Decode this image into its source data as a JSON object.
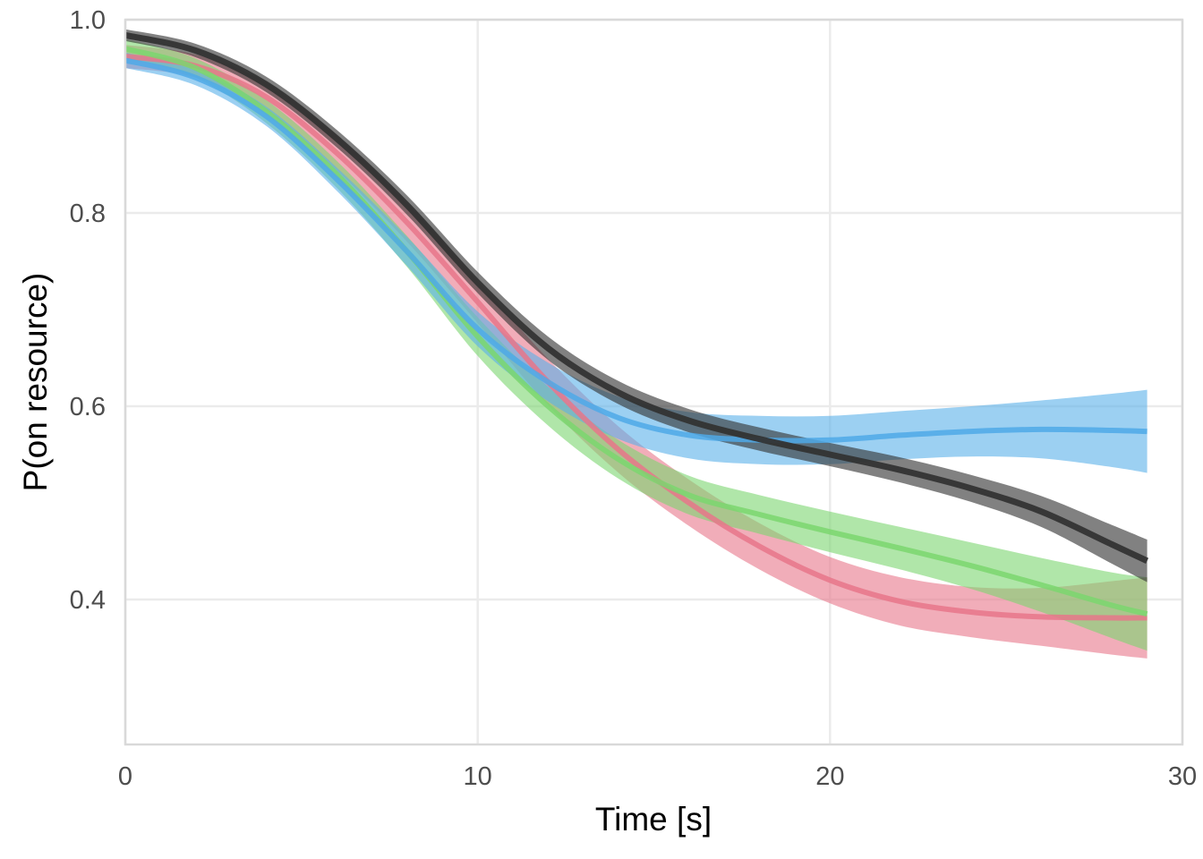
{
  "chart_data": {
    "type": "line",
    "title": "",
    "xlabel": "Time [s]",
    "ylabel": "P(on resource)",
    "xlim": [
      0,
      30
    ],
    "ylim": [
      0.25,
      1.0
    ],
    "x_ticks": [
      0,
      10,
      20,
      30
    ],
    "x_tick_labels": [
      "0",
      "10",
      "20",
      "30"
    ],
    "y_ticks": [
      0.4,
      0.6,
      0.8,
      1.0
    ],
    "y_tick_labels": [
      "0.4",
      "0.6",
      "0.8",
      "1.0"
    ],
    "grid": true,
    "legend": "none",
    "x": [
      0,
      2,
      4,
      6,
      8,
      10,
      12,
      14,
      16,
      18,
      20,
      22,
      24,
      26,
      28,
      29
    ],
    "series": [
      {
        "name": "red",
        "color": "#e8768a",
        "band_color": "#e8768a",
        "values": [
          0.962,
          0.952,
          0.92,
          0.862,
          0.79,
          0.708,
          0.625,
          0.555,
          0.5,
          0.455,
          0.42,
          0.398,
          0.387,
          0.382,
          0.381,
          0.381
        ],
        "ci_halfwidth": [
          0.012,
          0.012,
          0.015,
          0.018,
          0.02,
          0.022,
          0.024,
          0.024,
          0.024,
          0.024,
          0.024,
          0.025,
          0.026,
          0.03,
          0.038,
          0.042
        ]
      },
      {
        "name": "green",
        "color": "#7bd66f",
        "band_color": "#7bd66f",
        "values": [
          0.97,
          0.95,
          0.905,
          0.84,
          0.76,
          0.672,
          0.6,
          0.545,
          0.508,
          0.488,
          0.47,
          0.453,
          0.435,
          0.415,
          0.394,
          0.385
        ],
        "ci_halfwidth": [
          0.01,
          0.01,
          0.012,
          0.014,
          0.016,
          0.02,
          0.02,
          0.02,
          0.02,
          0.02,
          0.021,
          0.022,
          0.024,
          0.028,
          0.034,
          0.038
        ]
      },
      {
        "name": "blue",
        "color": "#4fa9e8",
        "band_color": "#5ab1ea",
        "values": [
          0.958,
          0.94,
          0.9,
          0.835,
          0.76,
          0.68,
          0.625,
          0.588,
          0.57,
          0.565,
          0.565,
          0.57,
          0.574,
          0.576,
          0.575,
          0.574
        ],
        "ci_halfwidth": [
          0.008,
          0.008,
          0.01,
          0.012,
          0.015,
          0.018,
          0.02,
          0.022,
          0.024,
          0.025,
          0.025,
          0.025,
          0.026,
          0.03,
          0.038,
          0.043
        ]
      },
      {
        "name": "black",
        "color": "#333333",
        "band_color": "#333333",
        "values": [
          0.984,
          0.968,
          0.933,
          0.877,
          0.808,
          0.728,
          0.66,
          0.614,
          0.585,
          0.566,
          0.55,
          0.534,
          0.515,
          0.491,
          0.457,
          0.44
        ],
        "ci_halfwidth": [
          0.006,
          0.007,
          0.008,
          0.009,
          0.01,
          0.011,
          0.012,
          0.012,
          0.012,
          0.012,
          0.012,
          0.013,
          0.014,
          0.016,
          0.02,
          0.022
        ]
      }
    ]
  }
}
